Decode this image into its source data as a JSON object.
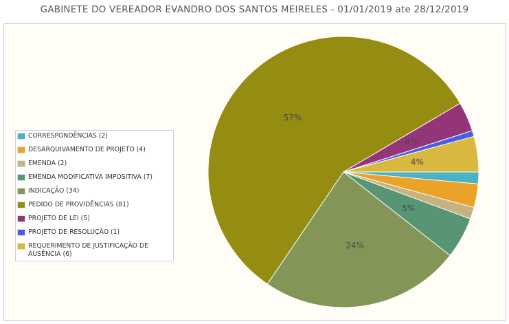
{
  "title": "GABINETE DO VEREADOR EVANDRO DOS SANTOS MEIRELES - 01/01/2019 ate 28/12/2019",
  "chart_data": {
    "type": "pie",
    "title": "GABINETE DO VEREADOR EVANDRO DOS SANTOS MEIRELES - 01/01/2019 ate 28/12/2019",
    "legend_position": "left",
    "slices": [
      {
        "label": "CORRESPONDÊNCIAS (2)",
        "value": 2,
        "color": "#4bb2c5",
        "pct_label": ""
      },
      {
        "label": "DESARQUIVAMENTO DE PROJETO (4)",
        "value": 4,
        "color": "#eaa228",
        "pct_label": ""
      },
      {
        "label": "EMENDA (2)",
        "value": 2,
        "color": "#c5b47f",
        "pct_label": ""
      },
      {
        "label": "EMENDA MODIFICATIVA IMPOSITIVA (7)",
        "value": 7,
        "color": "#579575",
        "pct_label": "5%"
      },
      {
        "label": "INDICAÇÃO (34)",
        "value": 34,
        "color": "#839557",
        "pct_label": "24%"
      },
      {
        "label": "PEDIDO DE PROVIDÊNCIAS (81)",
        "value": 81,
        "color": "#958c12",
        "pct_label": "57%"
      },
      {
        "label": "PROJETO DE LEI (5)",
        "value": 5,
        "color": "#953579",
        "pct_label": "4%"
      },
      {
        "label": "PROJETO DE RESOLUÇÃO (1)",
        "value": 1,
        "color": "#4b5de4",
        "pct_label": ""
      },
      {
        "label": "REQUERIMENTO DE JUSTIFICAÇÃO DE AUSÊNCIA (6)",
        "value": 6,
        "color": "#d8b83f",
        "pct_label": "4%"
      }
    ]
  }
}
